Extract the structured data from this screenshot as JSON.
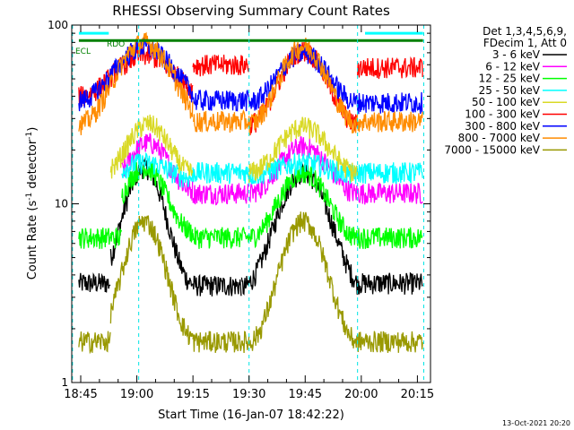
{
  "chart_data": {
    "type": "line",
    "title": "RHESSI Observing Summary Count Rates",
    "xlabel": "Start Time (16-Jan-07 18:42:22)",
    "ylabel_main": "Count Rate (s",
    "ylabel_sup1": "-1",
    "ylabel_mid": " detector",
    "ylabel_sup2": "-1",
    "ylabel_end": ")",
    "x_ticks": [
      "18:45",
      "19:00",
      "19:15",
      "19:30",
      "19:45",
      "20:00",
      "20:15"
    ],
    "x_tick_minutes": [
      0,
      15,
      30,
      45,
      60,
      75,
      90
    ],
    "x_range_minutes": [
      -2.4,
      93.5
    ],
    "y_scale": "log",
    "y_range": [
      1,
      100
    ],
    "y_tick_labels": [
      "1",
      "10",
      "100"
    ],
    "legend_header": [
      "Det 1,3,4,5,6,9,",
      "FDecim 1, Att 0"
    ],
    "timestamp": "13-Oct-2021 20:20",
    "flag_labels": {
      "rdo": "RDO",
      "ecl": "ECL"
    },
    "grid": false,
    "legend_position": "right",
    "series": [
      {
        "name": "3 - 6 keV",
        "color": "#000000",
        "segments": [
          {
            "t0": -0.5,
            "t1": 8,
            "baseline": 3.6
          },
          {
            "t0": 8,
            "t1": 30,
            "peak_t": 17,
            "peak": 16,
            "edge": 3.6
          },
          {
            "t0": 30,
            "t1": 43,
            "baseline": 3.5
          },
          {
            "t0": 43,
            "t1": 74,
            "peak_t": 59.5,
            "peak": 15,
            "edge": 3.4
          },
          {
            "t0": 74,
            "t1": 91.5,
            "baseline": 3.6
          }
        ]
      },
      {
        "name": "6 - 12 keV",
        "color": "#ff00ff",
        "segments": [
          {
            "t0": 11,
            "t1": 30,
            "peak_t": 18,
            "peak": 22,
            "edge": 12
          },
          {
            "t0": 30,
            "t1": 45,
            "baseline": 11.5
          },
          {
            "t0": 45,
            "t1": 74,
            "peak_t": 59.5,
            "peak": 21,
            "edge": 11.5
          },
          {
            "t0": 74,
            "t1": 91.5,
            "baseline": 11.5
          }
        ]
      },
      {
        "name": "12 - 25 keV",
        "color": "#00ff00",
        "segments": [
          {
            "t0": -0.5,
            "t1": 11,
            "baseline": 6.5
          },
          {
            "t0": 11,
            "t1": 30,
            "peak_t": 17,
            "peak": 16,
            "edge": 7
          },
          {
            "t0": 30,
            "t1": 45,
            "baseline": 6.5
          },
          {
            "t0": 45,
            "t1": 74,
            "peak_t": 59.5,
            "peak": 15,
            "edge": 6.5
          },
          {
            "t0": 74,
            "t1": 91.5,
            "baseline": 6.5
          }
        ]
      },
      {
        "name": "25 - 50 keV",
        "color": "#00ffff",
        "segments": [
          {
            "t0": 11,
            "t1": 30,
            "peak_t": 17,
            "peak": 17,
            "edge": 14
          },
          {
            "t0": 30,
            "t1": 45,
            "baseline": 15
          },
          {
            "t0": 45,
            "t1": 74,
            "peak_t": 59.5,
            "peak": 17,
            "edge": 14.5
          },
          {
            "t0": 74,
            "t1": 91.5,
            "baseline": 15
          }
        ]
      },
      {
        "name": "50 - 100 keV",
        "color": "#d9d926",
        "segments": [
          {
            "t0": 8,
            "t1": 30,
            "peak_t": 18,
            "peak": 28,
            "edge": 15
          },
          {
            "t0": 45,
            "t1": 74,
            "peak_t": 59.5,
            "peak": 27,
            "edge": 15
          }
        ]
      },
      {
        "name": "100 - 300 keV",
        "color": "#ff0000",
        "segments": [
          {
            "t0": -0.5,
            "t1": 30,
            "peak_t": 17,
            "peak": 68,
            "edge": 40
          },
          {
            "t0": 30,
            "t1": 45,
            "baseline": 60
          },
          {
            "t0": 45,
            "t1": 74,
            "peak_t": 59.5,
            "peak": 72,
            "edge": 28
          },
          {
            "t0": 74,
            "t1": 91.5,
            "baseline": 58
          }
        ]
      },
      {
        "name": "300 - 800 keV",
        "color": "#0000ff",
        "segments": [
          {
            "t0": -0.5,
            "t1": 30,
            "peak_t": 17,
            "peak": 75,
            "edge": 38
          },
          {
            "t0": 30,
            "t1": 45,
            "baseline": 38
          },
          {
            "t0": 45,
            "t1": 74,
            "peak_t": 59.5,
            "peak": 70,
            "edge": 37
          },
          {
            "t0": 74,
            "t1": 91.5,
            "baseline": 37
          }
        ]
      },
      {
        "name": "800 - 7000 keV",
        "color": "#ff8c00",
        "segments": [
          {
            "t0": -0.5,
            "t1": 30,
            "peak_t": 17,
            "peak": 80,
            "edge": 28
          },
          {
            "t0": 30,
            "t1": 45,
            "baseline": 29
          },
          {
            "t0": 45,
            "t1": 74,
            "peak_t": 59.5,
            "peak": 76,
            "edge": 28
          },
          {
            "t0": 74,
            "t1": 91.5,
            "baseline": 29
          }
        ]
      },
      {
        "name": "7000 - 15000 keV",
        "color": "#999900",
        "segments": [
          {
            "t0": -0.5,
            "t1": 8,
            "baseline": 1.7
          },
          {
            "t0": 8,
            "t1": 30,
            "peak_t": 17,
            "peak": 8,
            "edge": 1.8
          },
          {
            "t0": 30,
            "t1": 45,
            "baseline": 1.7
          },
          {
            "t0": 45,
            "t1": 74,
            "peak_t": 59.5,
            "peak": 8,
            "edge": 1.7
          },
          {
            "t0": 74,
            "t1": 91.5,
            "baseline": 1.7
          }
        ]
      }
    ],
    "dashed_markers_minutes": [
      -2.2,
      15.5,
      45,
      74,
      91.7
    ],
    "flag_bars": [
      {
        "color": "#00ffff",
        "t0": -0.5,
        "t1": 7.5,
        "level": 90
      },
      {
        "color": "#00ffff",
        "t0": 76,
        "t1": 91.5,
        "level": 90
      },
      {
        "color": "#008000",
        "t0": -0.5,
        "t1": 91.5,
        "level": 82
      }
    ]
  }
}
